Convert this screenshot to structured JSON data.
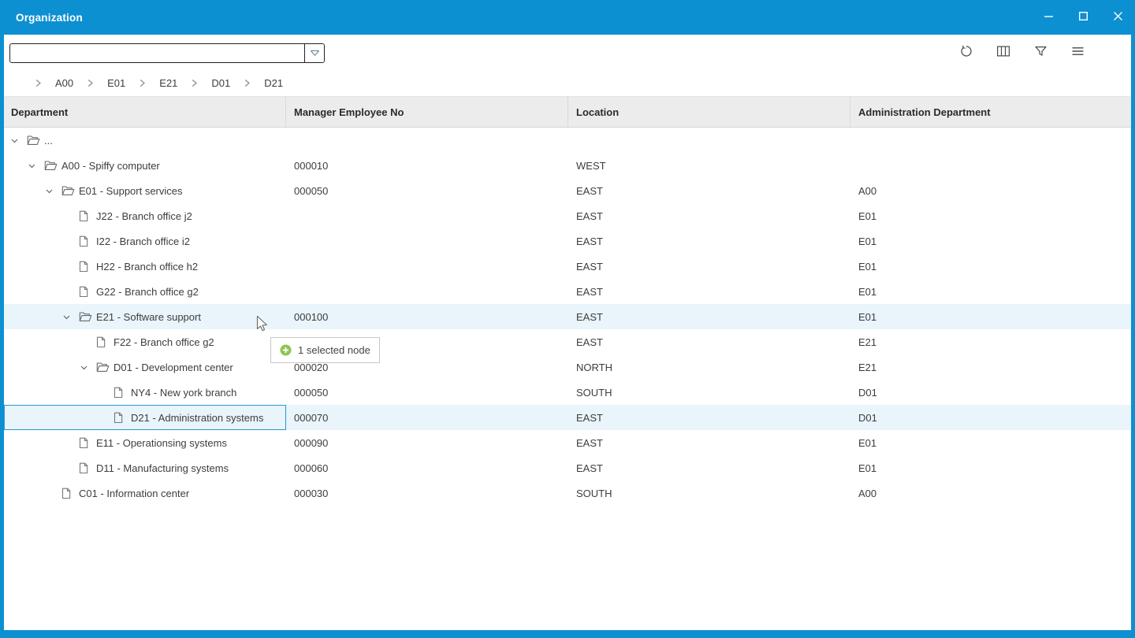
{
  "colors": {
    "accent": "#0d90d1",
    "header_bg": "#ececec",
    "row_highlight": "#e9f4fb",
    "selection_border": "#2697cf",
    "tooltip_green": "#8dc652"
  },
  "window": {
    "title": "Organization",
    "controls": [
      {
        "name": "minimize"
      },
      {
        "name": "maximize"
      },
      {
        "name": "close"
      }
    ]
  },
  "toolbar": {
    "search_value": "",
    "search_placeholder": "",
    "icons": [
      {
        "name": "reset"
      },
      {
        "name": "columns"
      },
      {
        "name": "filter"
      },
      {
        "name": "menu"
      }
    ]
  },
  "breadcrumb": {
    "items": [
      "A00",
      "E01",
      "E21",
      "D01",
      "D21"
    ]
  },
  "table": {
    "columns": [
      "Department",
      "Manager Employee No",
      "Location",
      "Administration Department"
    ],
    "rows": [
      {
        "label": "...",
        "manager": "",
        "location": "",
        "admin": "",
        "level": 0,
        "kind": "folder",
        "expanded": true,
        "highlighted": false,
        "selected": false
      },
      {
        "label": "A00 - Spiffy computer",
        "manager": "000010",
        "location": "WEST",
        "admin": "",
        "level": 1,
        "kind": "folder",
        "expanded": true,
        "highlighted": false,
        "selected": false
      },
      {
        "label": "E01 - Support services",
        "manager": "000050",
        "location": "EAST",
        "admin": "A00",
        "level": 2,
        "kind": "folder",
        "expanded": true,
        "highlighted": false,
        "selected": false
      },
      {
        "label": "J22 - Branch office j2",
        "manager": "",
        "location": "EAST",
        "admin": "E01",
        "level": 3,
        "kind": "leaf",
        "highlighted": false,
        "selected": false
      },
      {
        "label": "I22 - Branch office i2",
        "manager": "",
        "location": "EAST",
        "admin": "E01",
        "level": 3,
        "kind": "leaf",
        "highlighted": false,
        "selected": false
      },
      {
        "label": "H22 - Branch office h2",
        "manager": "",
        "location": "EAST",
        "admin": "E01",
        "level": 3,
        "kind": "leaf",
        "highlighted": false,
        "selected": false
      },
      {
        "label": "G22 - Branch office g2",
        "manager": "",
        "location": "EAST",
        "admin": "E01",
        "level": 3,
        "kind": "leaf",
        "highlighted": false,
        "selected": false
      },
      {
        "label": "E21 - Software support",
        "manager": "000100",
        "location": "EAST",
        "admin": "E01",
        "level": 3,
        "kind": "folder",
        "expanded": true,
        "highlighted": true,
        "selected": false
      },
      {
        "label": "F22 - Branch office g2",
        "manager": "",
        "location": "EAST",
        "admin": "E21",
        "level": 4,
        "kind": "leaf",
        "highlighted": false,
        "selected": false
      },
      {
        "label": "D01 - Development center",
        "manager": "000020",
        "location": "NORTH",
        "admin": "E21",
        "level": 4,
        "kind": "folder",
        "expanded": true,
        "highlighted": false,
        "selected": false
      },
      {
        "label": "NY4 - New york branch",
        "manager": "000050",
        "location": "SOUTH",
        "admin": "D01",
        "level": 5,
        "kind": "leaf",
        "highlighted": false,
        "selected": false
      },
      {
        "label": "D21 - Administration systems",
        "manager": "000070",
        "location": "EAST",
        "admin": "D01",
        "level": 5,
        "kind": "leaf",
        "highlighted": true,
        "selected": true
      },
      {
        "label": "E11 - Operationsing systems",
        "manager": "000090",
        "location": "EAST",
        "admin": "E01",
        "level": 3,
        "kind": "leaf",
        "highlighted": false,
        "selected": false
      },
      {
        "label": "D11 - Manufacturing systems",
        "manager": "000060",
        "location": "EAST",
        "admin": "E01",
        "level": 3,
        "kind": "leaf",
        "highlighted": false,
        "selected": false
      },
      {
        "label": "C01 - Information center",
        "manager": "000030",
        "location": "SOUTH",
        "admin": "A00",
        "level": 2,
        "kind": "leaf",
        "highlighted": false,
        "selected": false
      }
    ]
  },
  "tooltip": {
    "text": "1 selected node"
  }
}
